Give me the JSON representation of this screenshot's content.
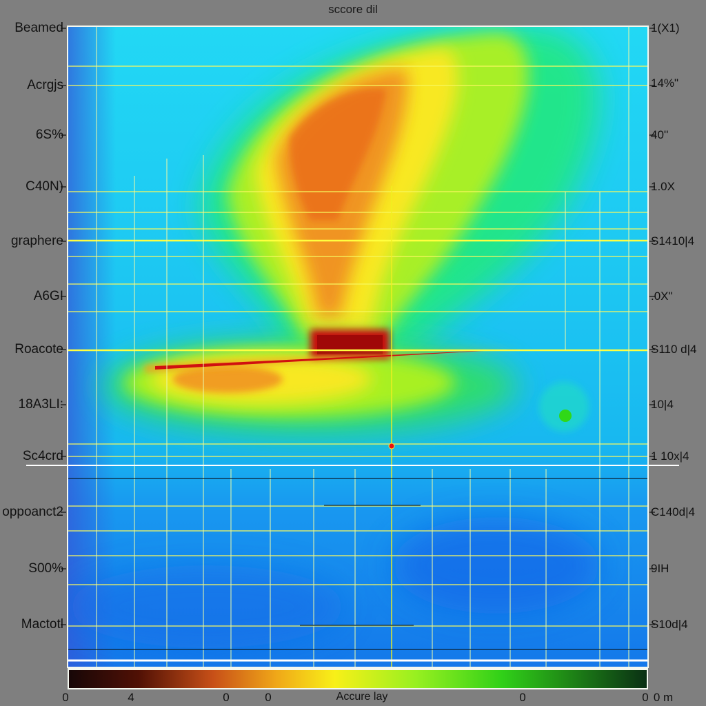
{
  "chart_data": {
    "type": "heatmap",
    "title": "sccore dil",
    "xlabel": "Accure lay",
    "ylabel": "",
    "y_tick_labels_left": [
      "Beamed",
      "Acrgjs",
      "6S%",
      "C40N)",
      "graphere",
      "A6GI",
      "Roacote",
      "18A3LI:",
      "Sc4crd",
      "oppoanct2",
      "S00%",
      "Mactotl"
    ],
    "y_tick_labels_right": [
      "1(X1)",
      "14%\"",
      "40''",
      "1.0X",
      "S1410|4",
      ".0X\"",
      "S110 d|4",
      "10|4",
      "1 10x|4",
      "C140d|4",
      "9IH",
      "S10d|4"
    ],
    "x_tick_labels": [
      "0",
      "4",
      "0",
      "0",
      "0",
      "0",
      "0 m"
    ],
    "colorscale": [
      "#170707",
      "#c81010",
      "#f07018",
      "#f8f018",
      "#8af020",
      "#10e0b8",
      "#10c8f0",
      "#1890f0",
      "#0a3014"
    ],
    "regions": [
      {
        "name": "hot-plume",
        "intensity": "high",
        "value": 1.0
      },
      {
        "name": "hot-streak",
        "intensity": "peak",
        "value": 1.0
      },
      {
        "name": "warm-lobe",
        "intensity": "medium",
        "value": 0.6
      },
      {
        "name": "cool-field",
        "intensity": "low",
        "value": 0.2
      }
    ],
    "marker": {
      "color": "#e81010"
    },
    "grid": true
  }
}
